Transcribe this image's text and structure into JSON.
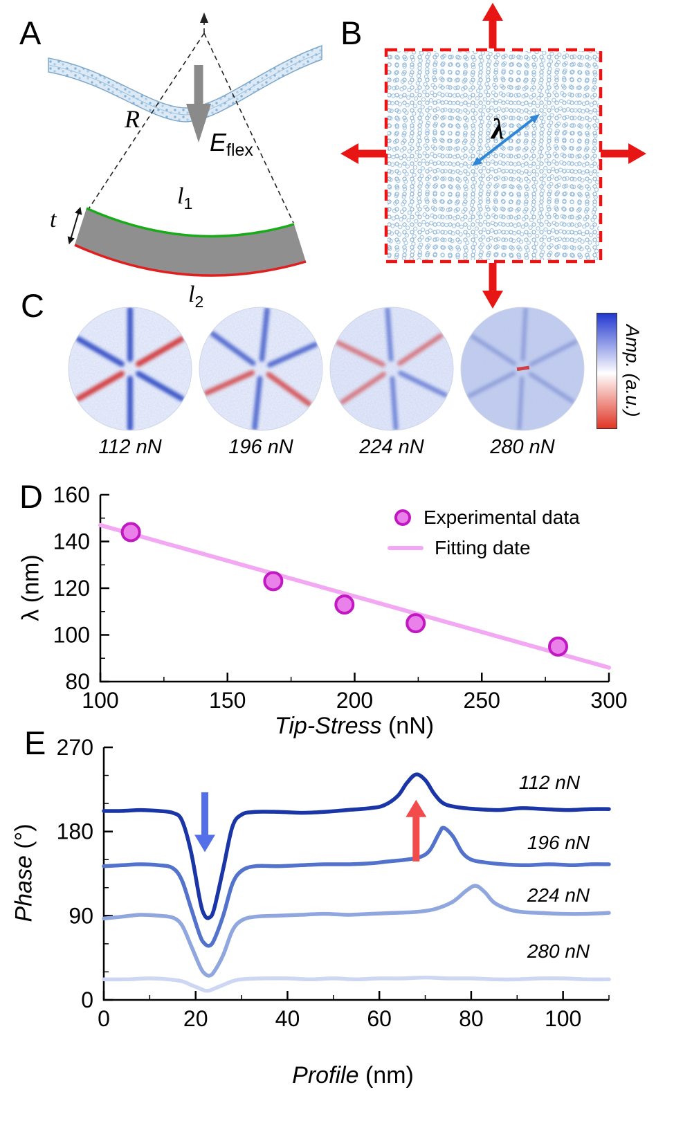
{
  "figure": {
    "colors": {
      "accent_red": "#e81515",
      "edge_green": "#17ab17",
      "edge_red": "#e02020",
      "slab_gray": "#8f8f8f",
      "arrow_gray": "#8a8a8a",
      "mesh_blue": "#7fa8cc",
      "lambda_arrow_blue": "#2f86d6"
    },
    "panels": {
      "A": {
        "label": "A",
        "radius_label": "R",
        "energy_label": "E",
        "energy_sub": "flex",
        "thickness_label": "t",
        "top_edge_label": "l",
        "top_edge_sub": "1",
        "bottom_edge_label": "l",
        "bottom_edge_sub": "2"
      },
      "B": {
        "label": "B",
        "wavelength_label": "λ"
      },
      "C": {
        "label": "C",
        "images": [
          {
            "caption": "112 nN"
          },
          {
            "caption": "196 nN"
          },
          {
            "caption": "224 nN"
          },
          {
            "caption": "280 nN"
          }
        ],
        "colorbar": {
          "label": "Amp. (a.u.)",
          "top_color": "#2238cf",
          "mid_color": "#ffffff",
          "bottom_color": "#e03525"
        }
      },
      "D": {
        "label": "D"
      },
      "E": {
        "label": "E"
      }
    }
  },
  "chart_data": [
    {
      "panel": "D",
      "type": "scatter",
      "xlabel_main": "Tip-Stress",
      "xlabel_unit": " (nN)",
      "ylabel": "λ (nm)",
      "xlim": [
        100,
        300
      ],
      "ylim": [
        80,
        160
      ],
      "xticks": [
        100,
        150,
        200,
        250,
        300
      ],
      "yticks": [
        80,
        100,
        120,
        140,
        160
      ],
      "x": [
        112,
        168,
        196,
        224,
        280
      ],
      "y": [
        144,
        123,
        113,
        105,
        95
      ],
      "fit_line": {
        "x": [
          100,
          300
        ],
        "y": [
          147,
          86
        ]
      },
      "legend": [
        {
          "label": "Experimental data",
          "marker": "circle"
        },
        {
          "label": "Fitting date",
          "marker": "line"
        }
      ],
      "colors": {
        "marker_fill": "#ea80ea",
        "marker_stroke": "#c218c2",
        "fit_line": "#f2a8f2"
      }
    },
    {
      "panel": "E",
      "type": "line",
      "xlabel_main": "Profile",
      "xlabel_unit": " (nm)",
      "ylabel_main": "Phase",
      "ylabel_unit": " (°)",
      "xlim": [
        0,
        110
      ],
      "ylim": [
        0,
        270
      ],
      "xticks": [
        0,
        20,
        40,
        60,
        80,
        100
      ],
      "yticks": [
        0,
        90,
        180,
        270
      ],
      "series": [
        {
          "name": "112 nN",
          "color": "#1a35a6",
          "points": [
            [
              0,
              202
            ],
            [
              4,
              202
            ],
            [
              8,
              203
            ],
            [
              12,
              202
            ],
            [
              15,
              200
            ],
            [
              17,
              192
            ],
            [
              19,
              158
            ],
            [
              21,
              105
            ],
            [
              22,
              90
            ],
            [
              23,
              88
            ],
            [
              24,
              97
            ],
            [
              26,
              140
            ],
            [
              28,
              185
            ],
            [
              30,
              198
            ],
            [
              33,
              201
            ],
            [
              38,
              201
            ],
            [
              43,
              200
            ],
            [
              48,
              201
            ],
            [
              53,
              203
            ],
            [
              58,
              205
            ],
            [
              61,
              208
            ],
            [
              64,
              218
            ],
            [
              66,
              232
            ],
            [
              68,
              241
            ],
            [
              70,
              235
            ],
            [
              72,
              220
            ],
            [
              74,
              210
            ],
            [
              77,
              206
            ],
            [
              81,
              204
            ],
            [
              86,
              203
            ],
            [
              91,
              205
            ],
            [
              96,
              204
            ],
            [
              101,
              203
            ],
            [
              106,
              204
            ],
            [
              110,
              204
            ]
          ]
        },
        {
          "name": "196 nN",
          "color": "#5272cc",
          "points": [
            [
              0,
              143
            ],
            [
              4,
              144
            ],
            [
              8,
              145
            ],
            [
              12,
              144
            ],
            [
              15,
              141
            ],
            [
              17,
              128
            ],
            [
              19,
              98
            ],
            [
              21,
              68
            ],
            [
              22,
              60
            ],
            [
              23,
              58
            ],
            [
              24,
              64
            ],
            [
              26,
              90
            ],
            [
              28,
              124
            ],
            [
              30,
              138
            ],
            [
              33,
              143
            ],
            [
              38,
              143
            ],
            [
              43,
              144
            ],
            [
              48,
              145
            ],
            [
              53,
              145
            ],
            [
              58,
              146
            ],
            [
              62,
              148
            ],
            [
              66,
              150
            ],
            [
              69,
              153
            ],
            [
              71,
              160
            ],
            [
              73,
              178
            ],
            [
              74,
              184
            ],
            [
              76,
              175
            ],
            [
              78,
              158
            ],
            [
              80,
              150
            ],
            [
              83,
              147
            ],
            [
              87,
              145
            ],
            [
              92,
              144
            ],
            [
              97,
              145
            ],
            [
              102,
              144
            ],
            [
              106,
              145
            ],
            [
              110,
              145
            ]
          ]
        },
        {
          "name": "224 nN",
          "color": "#8fa6de",
          "points": [
            [
              0,
              87
            ],
            [
              4,
              89
            ],
            [
              8,
              91
            ],
            [
              12,
              90
            ],
            [
              15,
              88
            ],
            [
              17,
              80
            ],
            [
              19,
              58
            ],
            [
              21,
              35
            ],
            [
              22,
              28
            ],
            [
              23,
              26
            ],
            [
              24,
              30
            ],
            [
              26,
              48
            ],
            [
              28,
              74
            ],
            [
              30,
              85
            ],
            [
              33,
              89
            ],
            [
              38,
              90
            ],
            [
              43,
              91
            ],
            [
              48,
              92
            ],
            [
              53,
              91
            ],
            [
              58,
              92
            ],
            [
              63,
              93
            ],
            [
              68,
              94
            ],
            [
              72,
              97
            ],
            [
              76,
              105
            ],
            [
              79,
              117
            ],
            [
              81,
              122
            ],
            [
              83,
              115
            ],
            [
              85,
              104
            ],
            [
              88,
              97
            ],
            [
              91,
              94
            ],
            [
              95,
              93
            ],
            [
              100,
              92
            ],
            [
              105,
              92
            ],
            [
              110,
              93
            ]
          ]
        },
        {
          "name": "280 nN",
          "color": "#cdd6f2",
          "points": [
            [
              0,
              22
            ],
            [
              5,
              22
            ],
            [
              10,
              23
            ],
            [
              14,
              22
            ],
            [
              17,
              20
            ],
            [
              19,
              16
            ],
            [
              21,
              12
            ],
            [
              22,
              10
            ],
            [
              23,
              10
            ],
            [
              24,
              12
            ],
            [
              26,
              16
            ],
            [
              28,
              20
            ],
            [
              30,
              22
            ],
            [
              35,
              23
            ],
            [
              40,
              23
            ],
            [
              45,
              22
            ],
            [
              50,
              23
            ],
            [
              55,
              22
            ],
            [
              60,
              23
            ],
            [
              65,
              23
            ],
            [
              70,
              24
            ],
            [
              75,
              23
            ],
            [
              80,
              23
            ],
            [
              85,
              22
            ],
            [
              90,
              22
            ],
            [
              95,
              23
            ],
            [
              100,
              23
            ],
            [
              105,
              22
            ],
            [
              110,
              22
            ]
          ]
        }
      ],
      "annotations": [
        {
          "shape": "arrow",
          "x": 22,
          "y_from": 222,
          "y_to": 158,
          "color": "#5470e8"
        },
        {
          "shape": "arrow",
          "x": 68,
          "y_from": 148,
          "y_to": 214,
          "color": "#f24b4b"
        }
      ]
    }
  ]
}
